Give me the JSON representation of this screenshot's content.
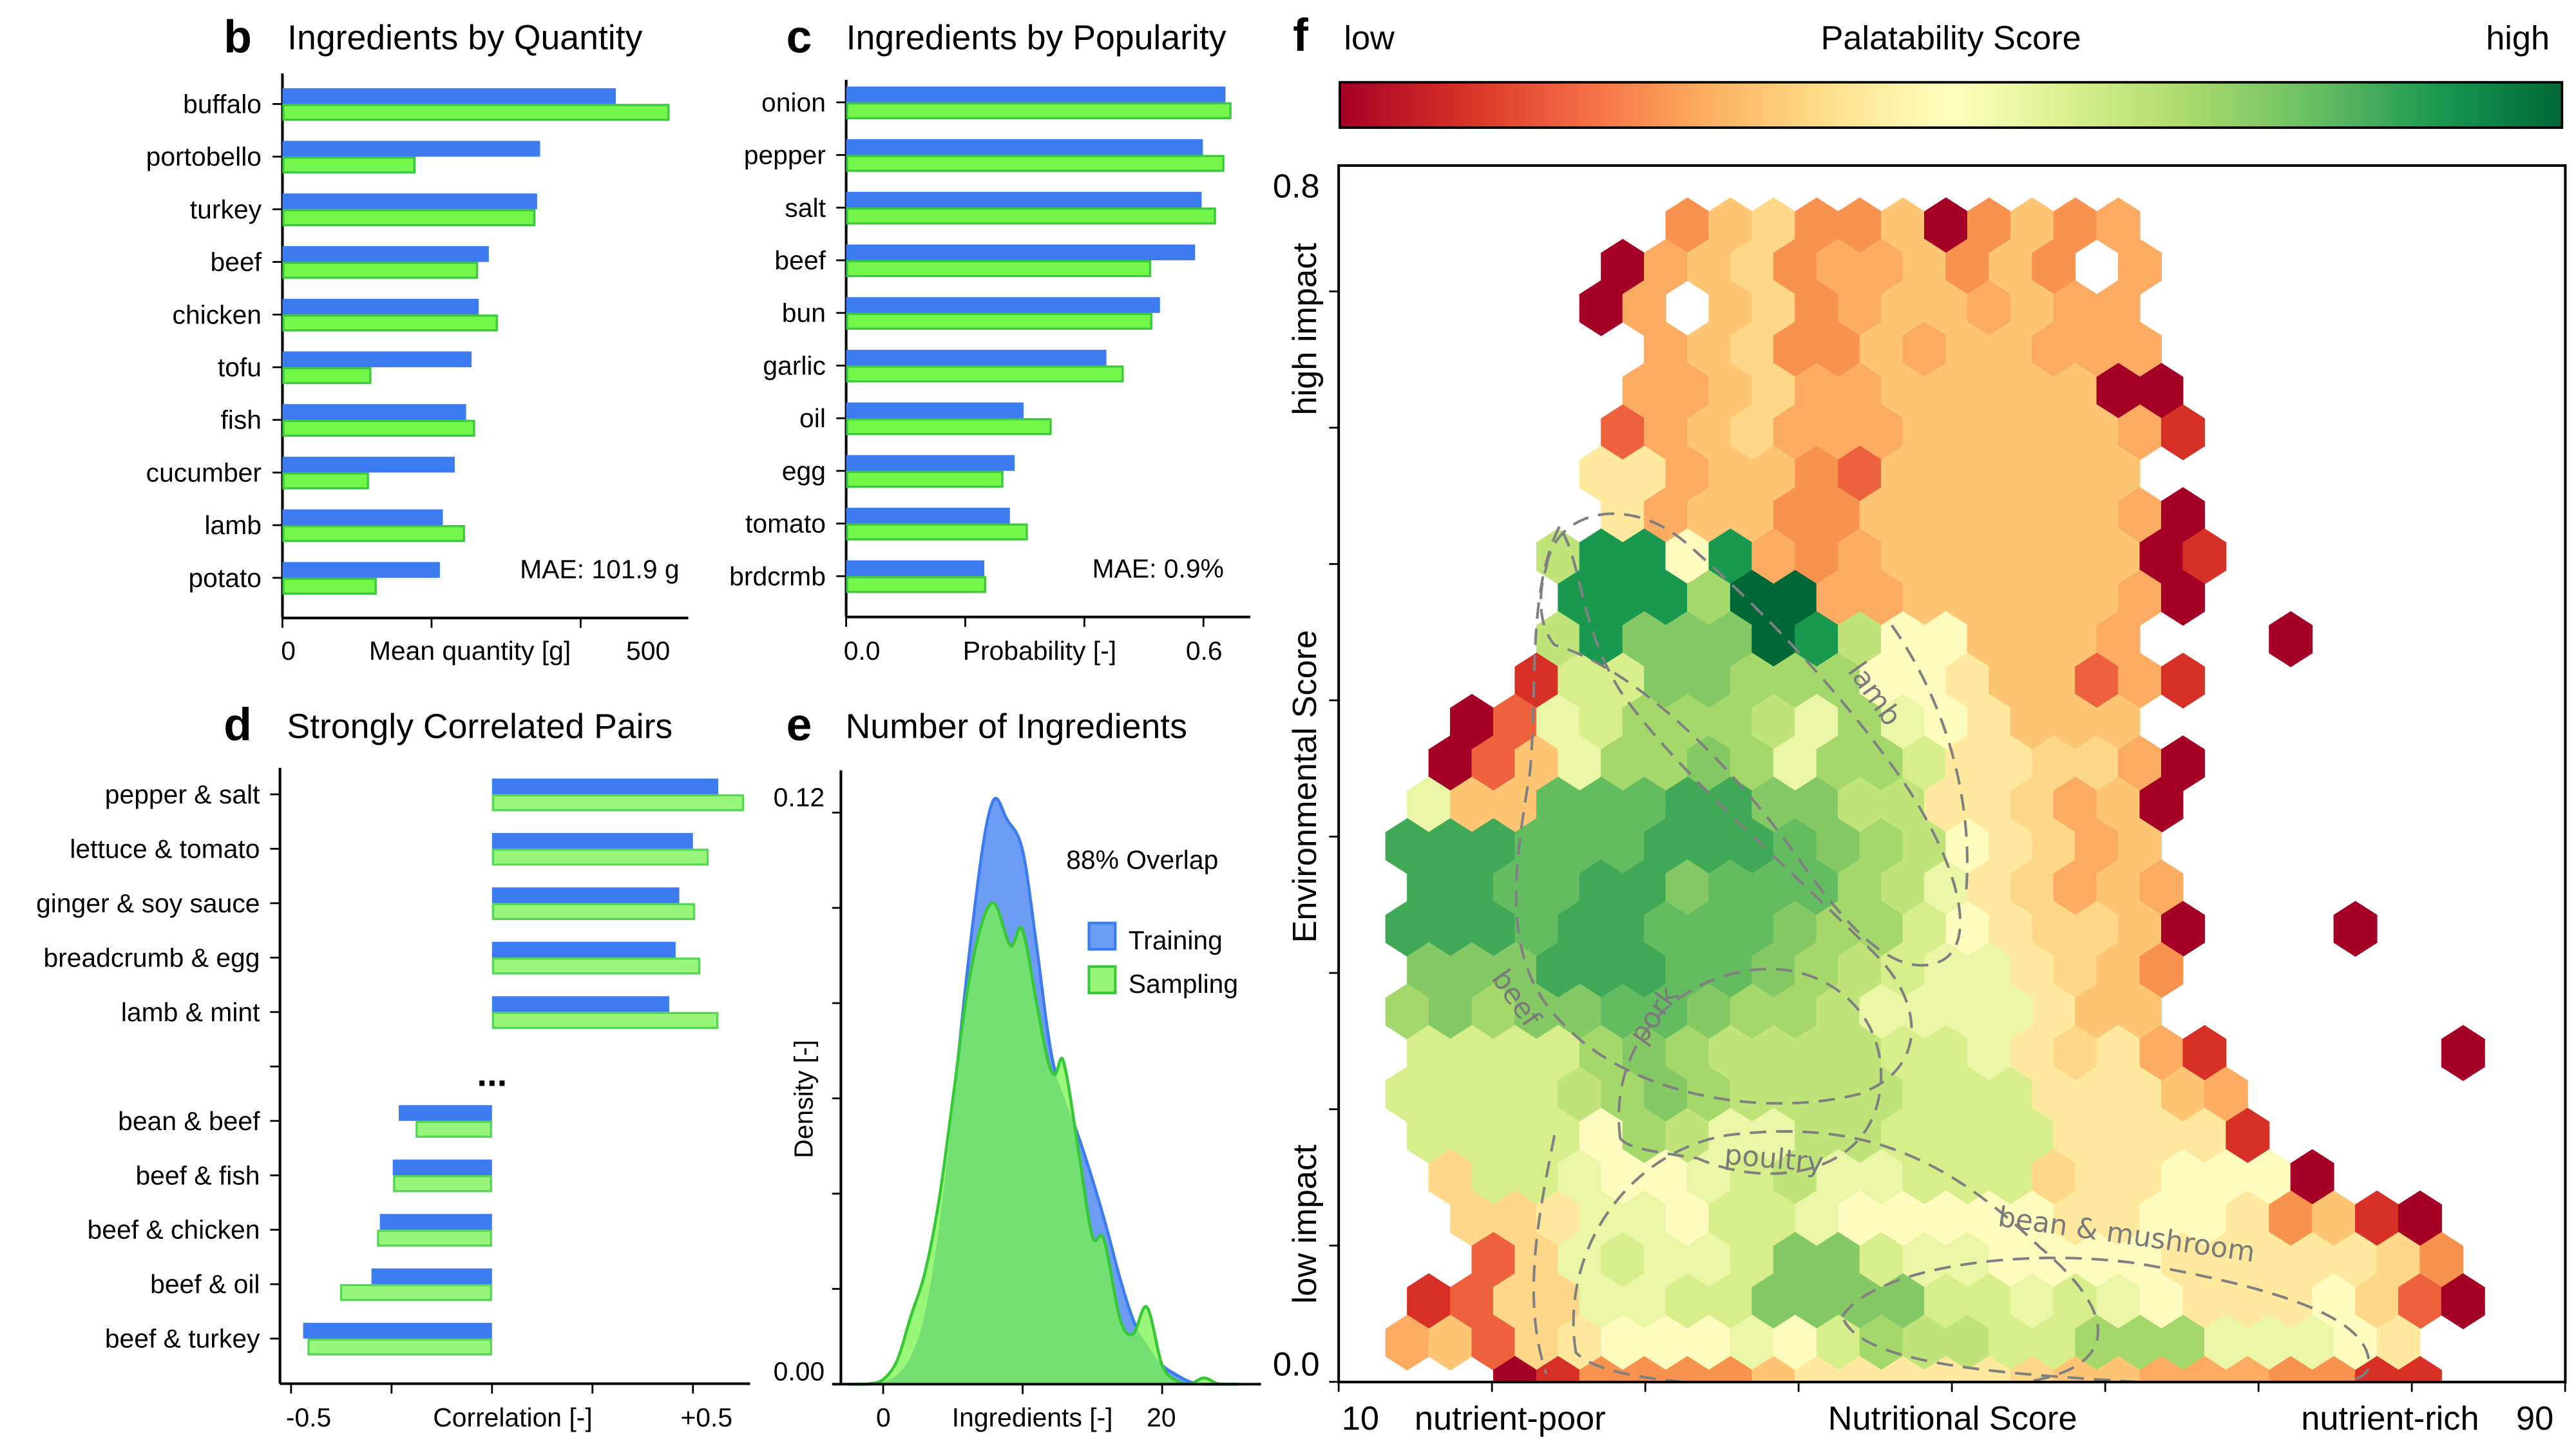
{
  "chart_data": [
    {
      "panel_label": "b",
      "type": "bar",
      "orientation": "horizontal",
      "title": "Ingredients by Quantity",
      "categories": [
        "buffalo",
        "portobello",
        "turkey",
        "beef",
        "chicken",
        "tofu",
        "fish",
        "cucumber",
        "lamb",
        "potato"
      ],
      "series": [
        {
          "name": "Training",
          "color": "#3d7cf0",
          "values": [
            559,
            432,
            427,
            346,
            329,
            317,
            308,
            289,
            269,
            264
          ]
        },
        {
          "name": "Sampling",
          "color": "#74f74a",
          "values": [
            649,
            223,
            424,
            328,
            361,
            149,
            323,
            145,
            306,
            158
          ]
        }
      ],
      "xlabel": "Mean quantity [g]",
      "x_ticks": [
        0,
        250,
        500
      ],
      "x_tick_labels": [
        "0",
        "500"
      ],
      "xlim": [
        0,
        680
      ],
      "annotation": "MAE: 101.9 g"
    },
    {
      "panel_label": "c",
      "type": "bar",
      "orientation": "horizontal",
      "title": "Ingredients by Popularity",
      "categories": [
        "onion",
        "pepper",
        "salt",
        "beef",
        "bun",
        "garlic",
        "oil",
        "egg",
        "tomato",
        "brdcrmb"
      ],
      "series": [
        {
          "name": "Training",
          "color": "#3d7cf0",
          "values": [
            0.637,
            0.599,
            0.597,
            0.586,
            0.527,
            0.437,
            0.298,
            0.283,
            0.275,
            0.232
          ]
        },
        {
          "name": "Sampling",
          "color": "#74f74a",
          "values": [
            0.647,
            0.635,
            0.621,
            0.512,
            0.514,
            0.466,
            0.345,
            0.264,
            0.305,
            0.235
          ]
        }
      ],
      "xlabel": "Probability [-]",
      "x_ticks": [
        0,
        0.2,
        0.4,
        0.6
      ],
      "x_tick_labels": [
        "0.0",
        "0.6"
      ],
      "xlim": [
        0,
        0.68
      ],
      "annotation": "MAE: 0.9%"
    },
    {
      "panel_label": "d",
      "type": "bar",
      "orientation": "horizontal",
      "title": "Strongly Correlated Pairs",
      "categories": [
        "pepper & salt",
        "lettuce & tomato",
        "ginger & soy sauce",
        "breadcrumb & egg",
        "lamb & mint",
        "bean & beef",
        "beef & fish",
        "beef & chicken",
        "beef & oil",
        "beef & turkey"
      ],
      "gap_label": "...",
      "series": [
        {
          "name": "Training",
          "color": "#3d7cf0",
          "values": [
            0.563,
            0.5,
            0.466,
            0.457,
            0.441,
            -0.232,
            -0.247,
            -0.279,
            -0.3,
            -0.47
          ]
        },
        {
          "name": "Sampling",
          "color": "#98f77a",
          "values": [
            0.627,
            0.539,
            0.505,
            0.518,
            0.563,
            -0.19,
            -0.246,
            -0.286,
            -0.378,
            -0.459
          ]
        }
      ],
      "xlabel": "Correlation [-]",
      "x_ticks": [
        -0.5,
        -0.25,
        0,
        0.25,
        0.5
      ],
      "x_tick_labels": [
        "-0.5",
        "+0.5"
      ],
      "xlim": [
        -0.53,
        0.64
      ]
    },
    {
      "panel_label": "e",
      "type": "area",
      "title": "Number of Ingredients",
      "xlabel": "Ingredients [-]",
      "ylabel": "Density [-]",
      "x_ticks": [
        0,
        10,
        20
      ],
      "x_tick_labels": [
        "0",
        "20"
      ],
      "y_ticks": [
        0,
        0.02,
        0.04,
        0.06,
        0.08,
        0.1,
        0.12
      ],
      "y_tick_labels": [
        "0.00",
        "0.12"
      ],
      "xlim": [
        -3.7,
        27.1
      ],
      "ylim": [
        0,
        0.129
      ],
      "annotation": "88% Overlap",
      "legend_position": "right",
      "series": [
        {
          "name": "Training",
          "color": "#3d7cf0",
          "x": [
            -1,
            0,
            1,
            2,
            3,
            4,
            5,
            6,
            7,
            7.6,
            8.1,
            8.8,
            10,
            11,
            11.8,
            12.3,
            13,
            14,
            15,
            16,
            17,
            18,
            19,
            20,
            21,
            22,
            23
          ],
          "y": [
            0,
            0.0005,
            0.002,
            0.006,
            0.015,
            0.033,
            0.058,
            0.086,
            0.11,
            0.12,
            0.123,
            0.119,
            0.112,
            0.092,
            0.074,
            0.066,
            0.06,
            0.052,
            0.043,
            0.033,
            0.022,
            0.013,
            0.008,
            0.004,
            0.002,
            0.0005,
            0
          ]
        },
        {
          "name": "Sampling",
          "color": "#37c837",
          "x": [
            -2,
            -1,
            0,
            1,
            2,
            3,
            4,
            5,
            6,
            7,
            7.95,
            9.15,
            9.95,
            11,
            11.8,
            12.3,
            12.9,
            14,
            15,
            15.8,
            17,
            17.9,
            18.9,
            20,
            21,
            22,
            23,
            24,
            25
          ],
          "y": [
            0,
            0.0001,
            0.001,
            0.005,
            0.0144,
            0.0235,
            0.0386,
            0.06,
            0.082,
            0.096,
            0.101,
            0.092,
            0.0956,
            0.08,
            0.068,
            0.065,
            0.068,
            0.049,
            0.031,
            0.0306,
            0.0135,
            0.0105,
            0.0162,
            0.004,
            0.0008,
            0.0001,
            0.0013,
            0.0001,
            0
          ]
        }
      ]
    },
    {
      "panel_label": "f",
      "type": "heatmap",
      "subtype": "hexbin",
      "colorbar": {
        "label": "Palatability Score",
        "low_label": "low",
        "high_label": "high",
        "colormap": "RdYlGn"
      },
      "xlabel": "Nutritional Score",
      "x_tick_labels": [
        "10",
        "90"
      ],
      "x_side_labels": [
        "nutrient-poor",
        "nutrient-rich"
      ],
      "xlim": [
        10,
        90
      ],
      "ylabel": "Environmental Score",
      "y_tick_labels": [
        "0.0",
        "0.8"
      ],
      "y_side_labels": [
        "high impact",
        "low impact"
      ],
      "ylim": [
        0,
        0.8
      ],
      "contour_labels": [
        "lamb",
        "beef",
        "pork",
        "poultry",
        "bean & mushroom"
      ],
      "level_colors": {
        "0": "#a50026",
        "1": "#d73027",
        "2": "#ee613d",
        "3": "#f8924f",
        "4": "#fcab62",
        "5": "#fdc574",
        "6": "#fed888",
        "7": "#fee99e",
        "8": "#fefbbf",
        "9": "#eaf6a5",
        "a": "#d8ee8b",
        "b": "#c0e47a",
        "c": "#a4d86a",
        "d": "#85c965",
        "e": "#64bc61",
        "f": "#3fa957",
        "g": "#1a9850",
        "h": "#006837"
      },
      "rows": [
        ".......35633503534........",
        ".....04563445353.4........",
        ".....04.5634554544........",
        "......456335455444........",
        "......4456445555500.......",
        ".....24564445555541.......",
        ".....7745532555555........",
        ".....74553355555540.......",
        "....bgg8g43455555501......",
        "....gggchh445555540.......",
        "....bgdddhgb885554...0....",
        "...1aaddccc88755241.......",
        "..029acccb9c987555........",
        ".0259ccdc9cca776640.......",
        ".955eeeffddbb776450.......",
        "fffeeefffedcb87645........",
        ".ffeeffdeeecb976454.......",
        "fffeffeeedcca876650...0...",
        ".dddfffeedcba997653.......",
        "cdcddeedccb9999755........",
        ".aaaacdcbbbbaa976741.....0",
        "aaaabcdcbbbbaaa77754......",
        ".aaaa8cb99bbaaaa77771.....",
        ".6aa9889ab99aaa6778880....",
        "..667998aa988888778873510.",
        "..269a99adda9988887777763.",
        ".126699aaddddaa9a987778620",
        "4526788898acbbaaccc99987..",
        "...0133335777776554443311."
      ]
    }
  ]
}
